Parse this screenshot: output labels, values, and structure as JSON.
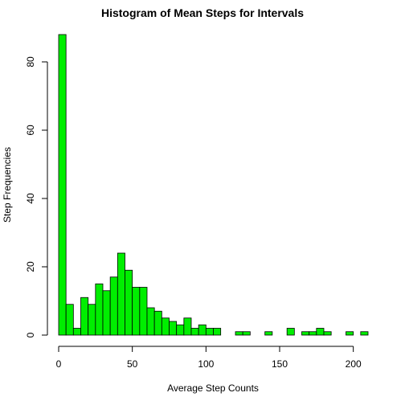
{
  "chart_data": {
    "type": "bar",
    "title": "Histogram of Mean Steps for Intervals",
    "xlabel": "Average Step Counts",
    "ylabel": "Step Frequencies",
    "bar_color": "#00ee00",
    "bin_width": 5,
    "xlim": [
      0,
      210
    ],
    "ylim": [
      0,
      88
    ],
    "x_ticks": [
      0,
      50,
      100,
      150,
      200
    ],
    "y_ticks": [
      0,
      20,
      40,
      60,
      80
    ],
    "bins_start": [
      0,
      5,
      10,
      15,
      20,
      25,
      30,
      35,
      40,
      45,
      50,
      55,
      60,
      65,
      70,
      75,
      80,
      85,
      90,
      95,
      100,
      105,
      110,
      115,
      120,
      125,
      130,
      135,
      140,
      145,
      150,
      155,
      160,
      165,
      170,
      175,
      180,
      185,
      190,
      195,
      200,
      205
    ],
    "values": [
      88,
      9,
      2,
      11,
      9,
      15,
      13,
      17,
      24,
      19,
      14,
      14,
      8,
      7,
      5,
      4,
      3,
      5,
      2,
      3,
      2,
      2,
      0,
      0,
      1,
      1,
      0,
      0,
      1,
      0,
      0,
      2,
      0,
      1,
      1,
      2,
      1,
      0,
      0,
      1,
      0,
      1
    ]
  }
}
